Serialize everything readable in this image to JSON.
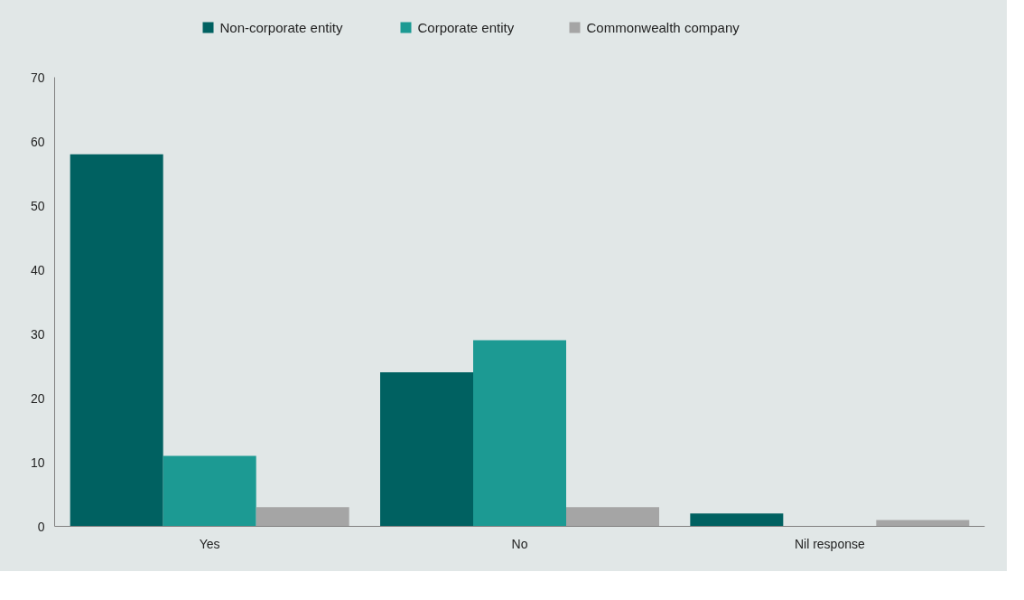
{
  "chart_data": {
    "type": "bar",
    "categories": [
      "Yes",
      "No",
      "Nil response"
    ],
    "series": [
      {
        "name": "Non-corporate entity",
        "color": "#006161",
        "values": [
          58,
          24,
          2
        ]
      },
      {
        "name": "Corporate entity",
        "color": "#1c9a93",
        "values": [
          11,
          29,
          0
        ]
      },
      {
        "name": "Commonwealth company",
        "color": "#a5a5a5",
        "values": [
          3,
          3,
          1
        ]
      }
    ],
    "ylim": [
      0,
      70
    ],
    "yticks": [
      0,
      10,
      20,
      30,
      40,
      50,
      60,
      70
    ],
    "legend": "top"
  }
}
